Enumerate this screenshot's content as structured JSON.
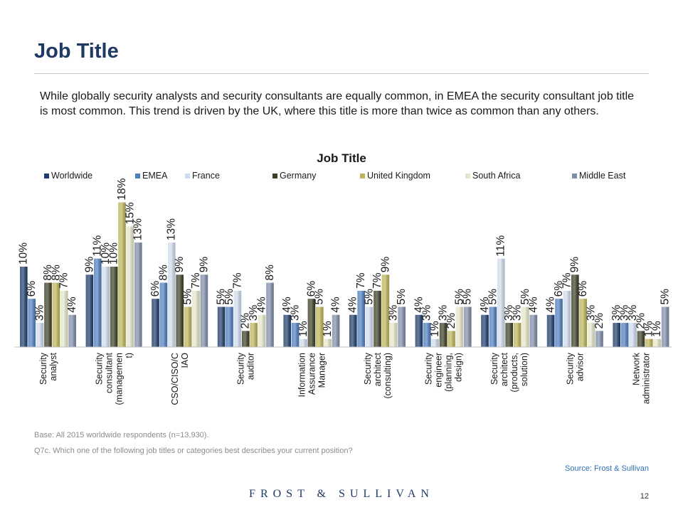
{
  "page": {
    "title": "Job Title",
    "intro": "While globally security analysts and security consultants are equally common, in EMEA the security consultant job title is most common. This trend is driven by the UK, where this title is more than twice as common than any others.",
    "base_note": "Base: All 2015 worldwide respondents (n=13,930).",
    "question_note": "Q7c. Which one of the following job titles or categories best describes your current position?",
    "source": "Source: Frost & Sullivan",
    "brand": "FROST & SULLIVAN",
    "page_number": "12"
  },
  "chart_data": {
    "type": "bar",
    "title": "Job Title",
    "value_suffix": "%",
    "legend_position": "top",
    "grid": false,
    "ylim": [
      0,
      20
    ],
    "categories": [
      [
        "Security",
        "analyst"
      ],
      [
        "Security",
        "consultant",
        "(managemen",
        "t)"
      ],
      [
        "CSO/CISO/C",
        "IAO"
      ],
      [
        "Security",
        "auditor"
      ],
      [
        "Information",
        "Assurance",
        "Manager"
      ],
      [
        "Security",
        "architect",
        "(consulting)"
      ],
      [
        "Security",
        "engineer",
        "(planning,",
        "design)"
      ],
      [
        "Security",
        "architect",
        "(products,",
        "solution)"
      ],
      [
        "Security",
        "advisor"
      ],
      [
        "Network",
        "administrator"
      ]
    ],
    "series": [
      {
        "name": "Worldwide",
        "color": "#1f3d6b",
        "values": [
          10,
          9,
          6,
          5,
          4,
          4,
          4,
          4,
          4,
          3
        ]
      },
      {
        "name": "EMEA",
        "color": "#4f7fbf",
        "values": [
          6,
          11,
          8,
          5,
          3,
          7,
          3,
          5,
          6,
          3
        ]
      },
      {
        "name": "France",
        "color": "#cfdcec",
        "values": [
          3,
          10,
          13,
          7,
          1,
          5,
          1,
          11,
          7,
          3
        ]
      },
      {
        "name": "Germany",
        "color": "#3c3f26",
        "values": [
          8,
          10,
          9,
          2,
          6,
          7,
          3,
          3,
          9,
          2
        ]
      },
      {
        "name": "United Kingdom",
        "color": "#bdb55a",
        "values": [
          8,
          18,
          5,
          3,
          5,
          9,
          2,
          3,
          6,
          1
        ]
      },
      {
        "name": "South Africa",
        "color": "#e4e6c8",
        "values": [
          7,
          15,
          7,
          4,
          1,
          3,
          5,
          5,
          3,
          1
        ]
      },
      {
        "name": "Middle East",
        "color": "#7f8da8",
        "values": [
          4,
          13,
          9,
          8,
          4,
          5,
          5,
          4,
          2,
          5
        ]
      }
    ]
  }
}
